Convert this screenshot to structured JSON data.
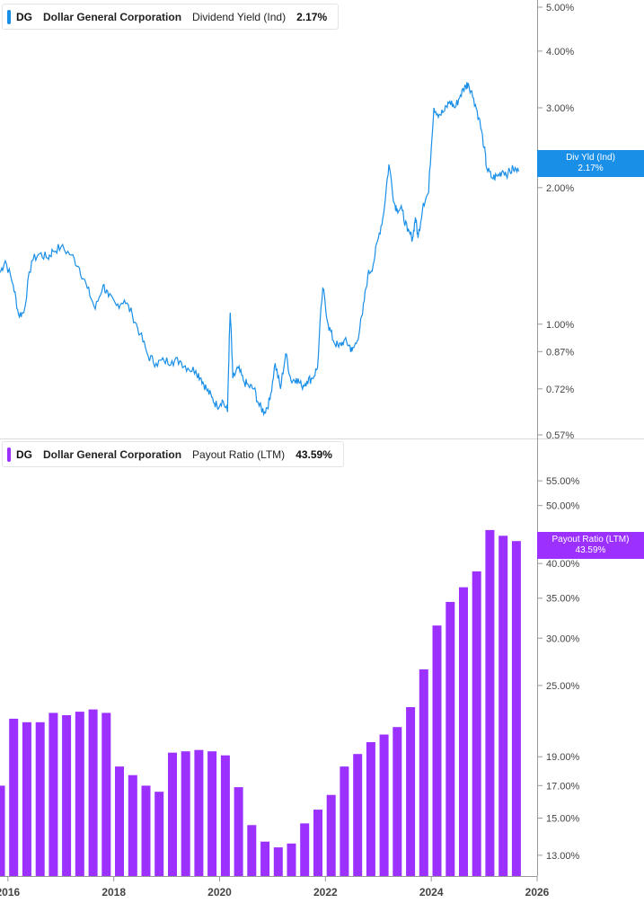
{
  "colors": {
    "yield_line": "#1a8fe8",
    "payout_bar": "#9b30ff",
    "axis": "#999999",
    "text": "#444444"
  },
  "legend_top": {
    "ticker": "DG",
    "company": "Dollar General Corporation",
    "metric": "Dividend Yield (Ind)",
    "value": "2.17%"
  },
  "legend_bottom": {
    "ticker": "DG",
    "company": "Dollar General Corporation",
    "metric": "Payout Ratio (LTM)",
    "value": "43.59%"
  },
  "badge_top": {
    "label": "Div Yld (Ind)",
    "value": "2.17%"
  },
  "badge_bottom": {
    "label": "Payout Ratio (LTM)",
    "value": "43.59%"
  },
  "chart_data": [
    {
      "type": "line",
      "scale": "log",
      "series": [
        {
          "name": "Dividend Yield (Ind)",
          "x": [
            2015.85,
            2015.95,
            2016.1,
            2016.2,
            2016.3,
            2016.45,
            2016.6,
            2016.75,
            2016.85,
            2017.0,
            2017.2,
            2017.35,
            2017.5,
            2017.65,
            2017.8,
            2017.9,
            2018.05,
            2018.2,
            2018.35,
            2018.5,
            2018.65,
            2018.8,
            2018.95,
            2019.1,
            2019.25,
            2019.4,
            2019.55,
            2019.65,
            2019.75,
            2019.85,
            2019.95,
            2020.05,
            2020.15,
            2020.2,
            2020.25,
            2020.35,
            2020.45,
            2020.55,
            2020.65,
            2020.75,
            2020.85,
            2020.95,
            2021.05,
            2021.15,
            2021.25,
            2021.35,
            2021.45,
            2021.55,
            2021.65,
            2021.75,
            2021.85,
            2021.95,
            2022.05,
            2022.15,
            2022.25,
            2022.35,
            2022.45,
            2022.5,
            2022.6,
            2022.7,
            2022.8,
            2022.9,
            2023.0,
            2023.1,
            2023.2,
            2023.3,
            2023.35,
            2023.45,
            2023.55,
            2023.65,
            2023.7,
            2023.75,
            2023.85,
            2023.95,
            2024.05,
            2024.15,
            2024.25,
            2024.35,
            2024.45,
            2024.55,
            2024.65,
            2024.7,
            2024.8,
            2024.9,
            2025.0,
            2025.05,
            2025.15,
            2025.25,
            2025.35,
            2025.45,
            2025.55,
            2025.65
          ],
          "values": [
            1.3,
            1.38,
            1.22,
            1.05,
            1.06,
            1.38,
            1.43,
            1.4,
            1.45,
            1.48,
            1.42,
            1.33,
            1.2,
            1.08,
            1.22,
            1.15,
            1.1,
            1.13,
            1.05,
            0.95,
            0.85,
            0.82,
            0.83,
            0.83,
            0.83,
            0.8,
            0.79,
            0.76,
            0.72,
            0.69,
            0.66,
            0.68,
            0.64,
            1.06,
            0.76,
            0.8,
            0.75,
            0.73,
            0.72,
            0.66,
            0.64,
            0.68,
            0.82,
            0.72,
            0.86,
            0.75,
            0.76,
            0.73,
            0.75,
            0.76,
            0.8,
            1.2,
            1.0,
            0.92,
            0.89,
            0.92,
            0.9,
            0.87,
            0.92,
            1.05,
            1.28,
            1.35,
            1.55,
            1.75,
            2.25,
            1.85,
            1.8,
            1.78,
            1.6,
            1.55,
            1.72,
            1.55,
            1.85,
            1.95,
            3.0,
            2.9,
            2.95,
            3.1,
            3.0,
            3.2,
            3.35,
            3.4,
            3.15,
            2.85,
            2.45,
            2.2,
            2.1,
            2.12,
            2.18,
            2.15,
            2.2,
            2.17
          ]
        }
      ],
      "y_ticks": [
        "5.00%",
        "4.00%",
        "3.00%",
        "2.00%",
        "1.00%",
        "0.87%",
        "0.72%",
        "0.57%"
      ],
      "ylim": [
        0.57,
        5.0
      ],
      "grid": false
    },
    {
      "type": "bar",
      "scale": "log",
      "series": [
        {
          "name": "Payout Ratio (LTM)",
          "x": [
            2015.75,
            2016.0,
            2016.25,
            2016.5,
            2016.75,
            2017.0,
            2017.25,
            2017.5,
            2017.75,
            2018.0,
            2018.25,
            2018.5,
            2018.75,
            2019.0,
            2019.25,
            2019.5,
            2019.75,
            2020.0,
            2020.25,
            2020.5,
            2020.75,
            2021.0,
            2021.25,
            2021.5,
            2021.75,
            2022.0,
            2022.25,
            2022.5,
            2022.75,
            2023.0,
            2023.25,
            2023.5,
            2023.75,
            2024.0,
            2024.25,
            2024.5,
            2024.75,
            2025.0,
            2025.25,
            2025.5
          ],
          "values": [
            17.0,
            22.0,
            21.7,
            21.7,
            22.5,
            22.3,
            22.6,
            22.8,
            22.5,
            18.3,
            17.7,
            17.0,
            16.6,
            19.3,
            19.4,
            19.5,
            19.4,
            19.1,
            16.9,
            14.6,
            13.7,
            13.4,
            13.6,
            14.7,
            15.5,
            16.4,
            18.3,
            19.2,
            20.1,
            20.7,
            21.3,
            23.0,
            26.6,
            31.5,
            34.5,
            36.5,
            38.8,
            45.5,
            44.5,
            43.6
          ]
        }
      ],
      "y_ticks": [
        "55.00%",
        "50.00%",
        "40.00%",
        "35.00%",
        "30.00%",
        "25.00%",
        "19.00%",
        "17.00%",
        "15.00%",
        "13.00%"
      ],
      "ylim": [
        12.0,
        60.0
      ],
      "grid": false
    }
  ],
  "x_ticks": [
    "2016",
    "2018",
    "2020",
    "2022",
    "2024",
    "2026"
  ]
}
